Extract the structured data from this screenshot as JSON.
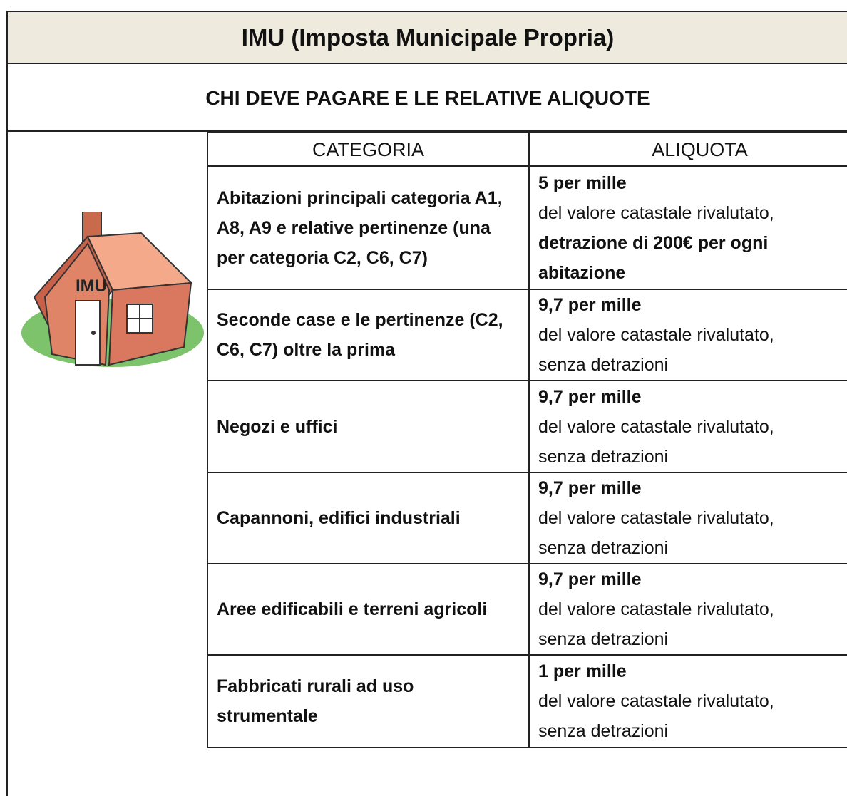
{
  "header": {
    "title": "IMU (Imposta Municipale Propria)",
    "subtitle": "CHI DEVE PAGARE E LE RELATIVE ALIQUOTE"
  },
  "image": {
    "label": "IMU"
  },
  "table": {
    "columns": [
      "CATEGORIA",
      "ALIQUOTA"
    ],
    "rows": [
      {
        "category": "Abitazioni principali categoria A1, A8, A9 e relative pertinenze (una per categoria C2, C6, C7)",
        "rate": "5 per mille",
        "text": "del valore catastale rivalutato,",
        "note": "detrazione di 200€ per ogni abitazione"
      },
      {
        "category": "Seconde case e le pertinenze (C2, C6, C7) oltre la prima",
        "rate": "9,7 per mille",
        "text": "del valore catastale rivalutato,",
        "detail": "senza detrazioni"
      },
      {
        "category": "Negozi e uffici",
        "rate": "9,7 per mille",
        "text": "del valore catastale rivalutato,",
        "detail": "senza detrazioni"
      },
      {
        "category": "Capannoni, edifici industriali",
        "rate": "9,7 per mille",
        "text": "del valore catastale rivalutato,",
        "detail": "senza detrazioni"
      },
      {
        "category": "Aree edificabili e terreni agricoli",
        "rate": "9,7 per mille",
        "text": "del valore catastale rivalutato,",
        "detail": "senza detrazioni"
      },
      {
        "category": "Fabbricati rurali ad uso strumentale",
        "rate": "1 per mille",
        "text": "del valore catastale rivalutato,",
        "detail": "senza detrazioni"
      }
    ]
  }
}
